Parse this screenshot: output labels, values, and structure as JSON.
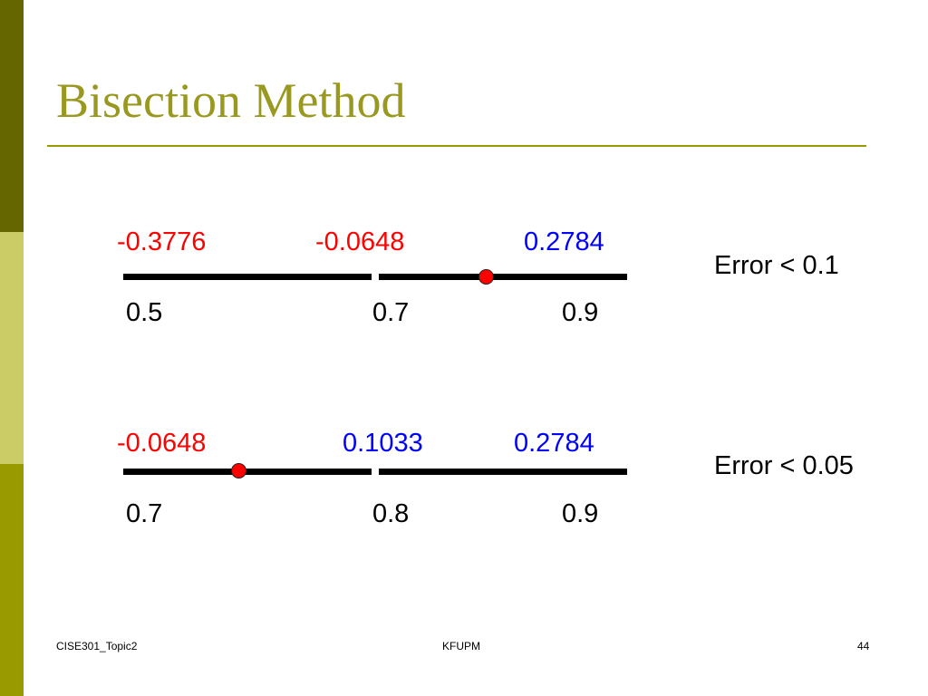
{
  "slide": {
    "title": "Bisection Method",
    "footer": {
      "left": "CISE301_Topic2",
      "center": "KFUPM",
      "right": "44"
    }
  },
  "colors": {
    "title": "#999922",
    "negative": "#ff0000",
    "positive": "#0000ff",
    "sidebar_dark": "#666600",
    "sidebar_light": "#cccc66",
    "sidebar_mid": "#999900"
  },
  "row1": {
    "f_values": [
      "-0.3776",
      "-0.0648",
      "0.2784"
    ],
    "x_values": [
      "0.5",
      "0.7",
      "0.9"
    ],
    "error_label": "Error < 0.1"
  },
  "row2": {
    "f_values": [
      "-0.0648",
      "0.1033",
      "0.2784"
    ],
    "x_values": [
      "0.7",
      "0.8",
      "0.9"
    ],
    "error_label": "Error < 0.05"
  }
}
